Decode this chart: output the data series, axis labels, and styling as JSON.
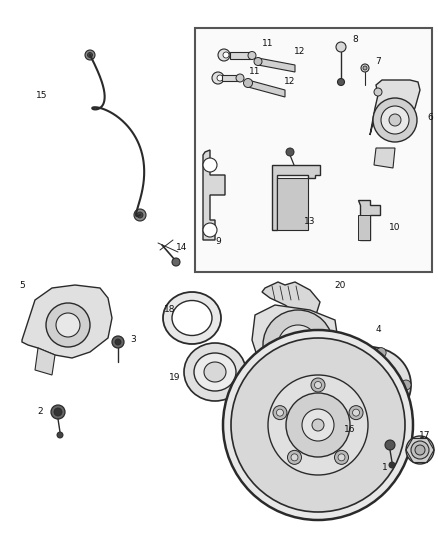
{
  "bg_color": "#ffffff",
  "line_color": "#2a2a2a",
  "fig_width": 4.38,
  "fig_height": 5.33,
  "dpi": 100,
  "xlim": [
    0,
    438
  ],
  "ylim": [
    0,
    533
  ]
}
